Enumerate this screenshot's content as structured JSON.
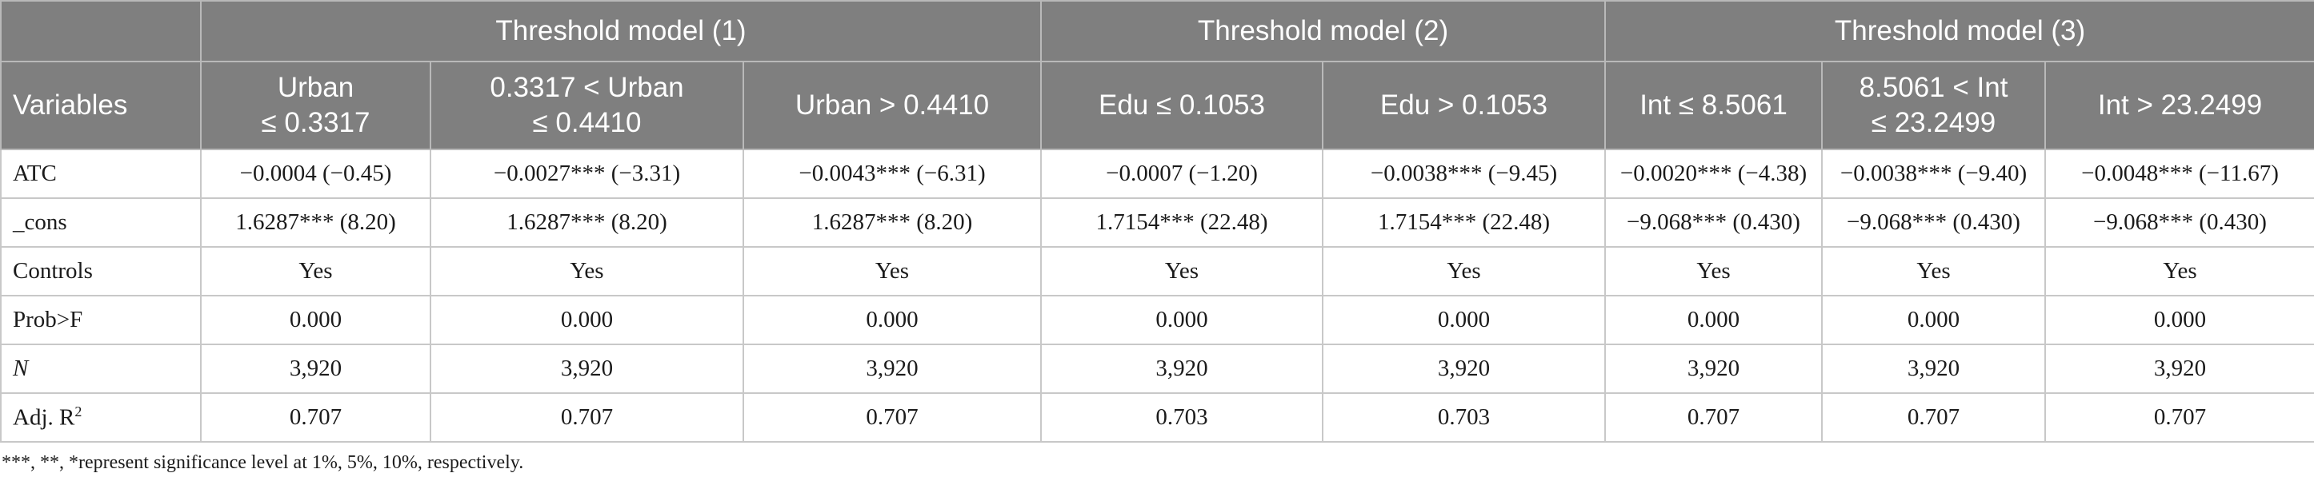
{
  "header": {
    "variables_label": "Variables",
    "groups": [
      "Threshold model (1)",
      "Threshold model (2)",
      "Threshold model (3)"
    ],
    "columns": [
      [
        "Urban",
        "≤ 0.3317"
      ],
      [
        "0.3317 < Urban",
        "≤ 0.4410"
      ],
      [
        "Urban > 0.4410"
      ],
      [
        "Edu ≤ 0.1053"
      ],
      [
        "Edu > 0.1053"
      ],
      [
        "Int ≤ 8.5061"
      ],
      [
        "8.5061 < Int",
        "≤ 23.2499"
      ],
      [
        "Int > 23.2499"
      ]
    ]
  },
  "rows": [
    {
      "label": "ATC",
      "cells": [
        "−0.0004 (−0.45)",
        "−0.0027*** (−3.31)",
        "−0.0043*** (−6.31)",
        "−0.0007 (−1.20)",
        "−0.0038*** (−9.45)",
        "−0.0020*** (−4.38)",
        "−0.0038*** (−9.40)",
        "−0.0048*** (−11.67)"
      ]
    },
    {
      "label": "_cons",
      "cells": [
        "1.6287*** (8.20)",
        "1.6287*** (8.20)",
        "1.6287*** (8.20)",
        "1.7154*** (22.48)",
        "1.7154*** (22.48)",
        "−9.068*** (0.430)",
        "−9.068*** (0.430)",
        "−9.068*** (0.430)"
      ]
    },
    {
      "label": "Controls",
      "cells": [
        "Yes",
        "Yes",
        "Yes",
        "Yes",
        "Yes",
        "Yes",
        "Yes",
        "Yes"
      ]
    },
    {
      "label": "Prob>F",
      "cells": [
        "0.000",
        "0.000",
        "0.000",
        "0.000",
        "0.000",
        "0.000",
        "0.000",
        "0.000"
      ]
    },
    {
      "label": "N",
      "italic": true,
      "cells": [
        "3,920",
        "3,920",
        "3,920",
        "3,920",
        "3,920",
        "3,920",
        "3,920",
        "3,920"
      ]
    },
    {
      "label": "Adj. R",
      "sup": "2",
      "cells": [
        "0.707",
        "0.707",
        "0.707",
        "0.703",
        "0.703",
        "0.707",
        "0.707",
        "0.707"
      ]
    }
  ],
  "note": "***, **, *represent significance level at 1%, 5%, 10%, respectively."
}
